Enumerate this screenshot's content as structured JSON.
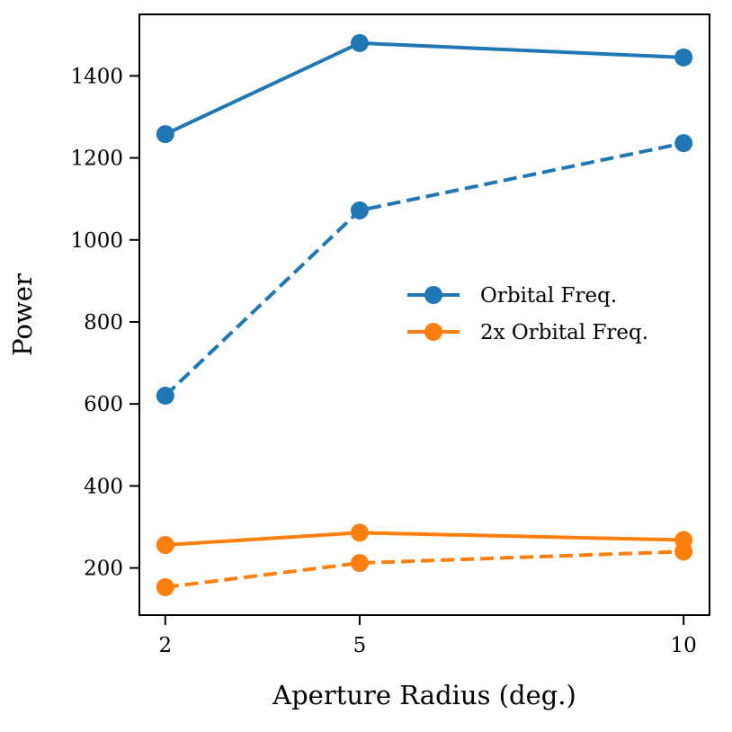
{
  "chart_data": {
    "type": "line",
    "title": "",
    "xlabel": "Aperture Radius (deg.)",
    "ylabel": "Power",
    "x": [
      2,
      5,
      10
    ],
    "x_ticks": [
      "2",
      "5",
      "10"
    ],
    "y_ticks": [
      "200",
      "400",
      "600",
      "800",
      "1000",
      "1200",
      "1400"
    ],
    "xlim": [
      1.6,
      10.4
    ],
    "ylim": [
      85,
      1550
    ],
    "grid": false,
    "legend_position": "center-right",
    "series": [
      {
        "name": "Orbital Freq.",
        "line_style": "solid",
        "color": "#1f77b4",
        "values": [
          1258,
          1480,
          1445
        ]
      },
      {
        "name": "",
        "line_style": "dashed",
        "color": "#1f77b4",
        "values": [
          620,
          1072,
          1236
        ]
      },
      {
        "name": "2x Orbital Freq.",
        "line_style": "solid",
        "color": "#ff7f0e",
        "values": [
          256,
          286,
          268
        ]
      },
      {
        "name": "",
        "line_style": "dashed",
        "color": "#ff7f0e",
        "values": [
          153,
          212,
          240
        ]
      }
    ]
  }
}
